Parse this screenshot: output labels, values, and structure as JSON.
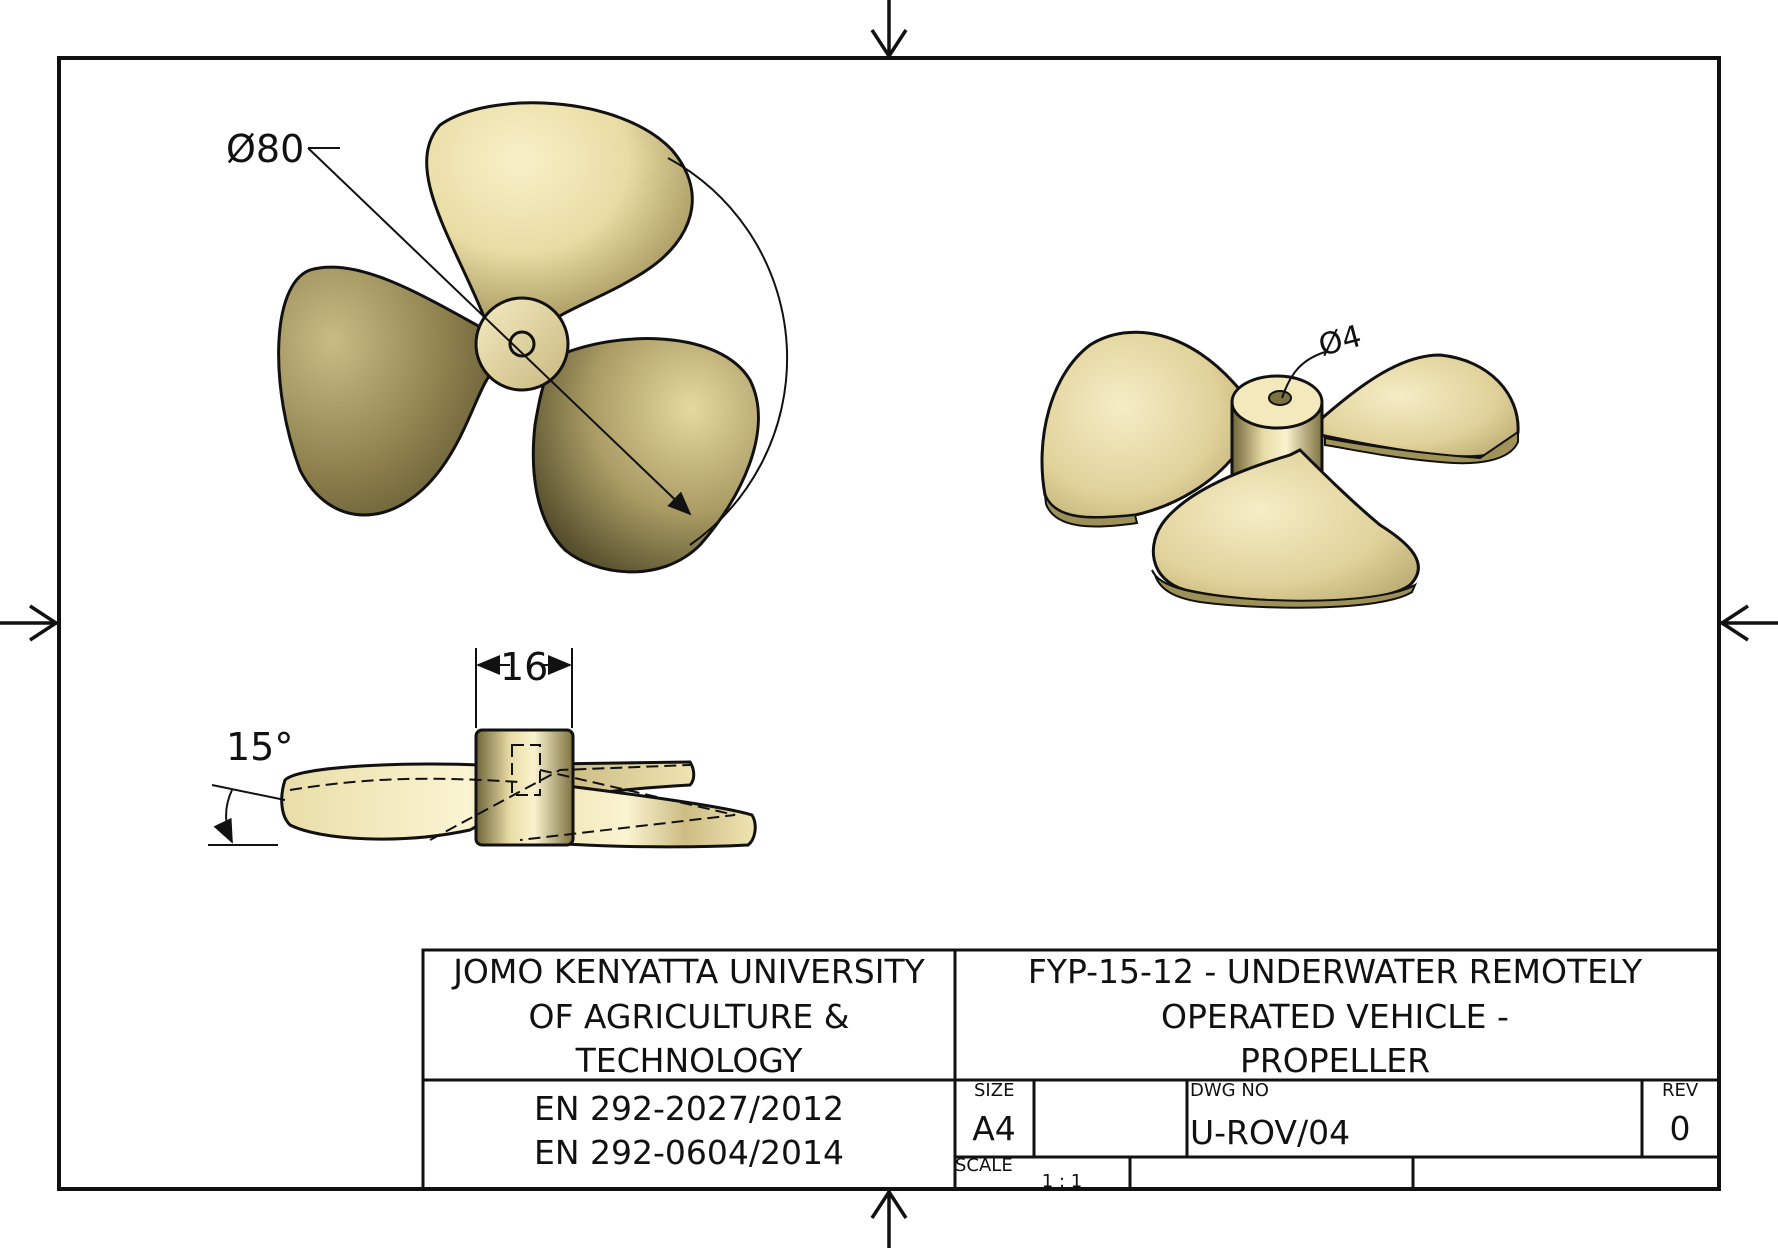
{
  "views": {
    "front": {
      "diameter_label": "Ø80"
    },
    "side": {
      "width_label": "16",
      "angle_label": "15°"
    },
    "iso": {
      "bore_label": "Ø4"
    }
  },
  "title_block": {
    "org_line1": "JOMO KENYATTA UNIVERSITY",
    "org_line2": "OF AGRICULTURE &",
    "org_line3": "TECHNOLOGY",
    "title_line1": "FYP-15-12 - UNDERWATER REMOTELY",
    "title_line2": "OPERATED VEHICLE -",
    "title_line3": "PROPELLER",
    "reg1": "EN 292-2027/2012",
    "reg2": "EN 292-0604/2014",
    "size_label": "SIZE",
    "size_value": "A4",
    "dwg_label": "DWG NO",
    "dwg_value": "U-ROV/04",
    "rev_label": "REV",
    "rev_value": "0",
    "scale_label": "SCALE",
    "scale_value": "1 : 1"
  },
  "colors": {
    "brass_light": "#f6edc0",
    "brass_mid": "#c9b882",
    "brass_dark": "#4a4322",
    "line": "#111111"
  }
}
